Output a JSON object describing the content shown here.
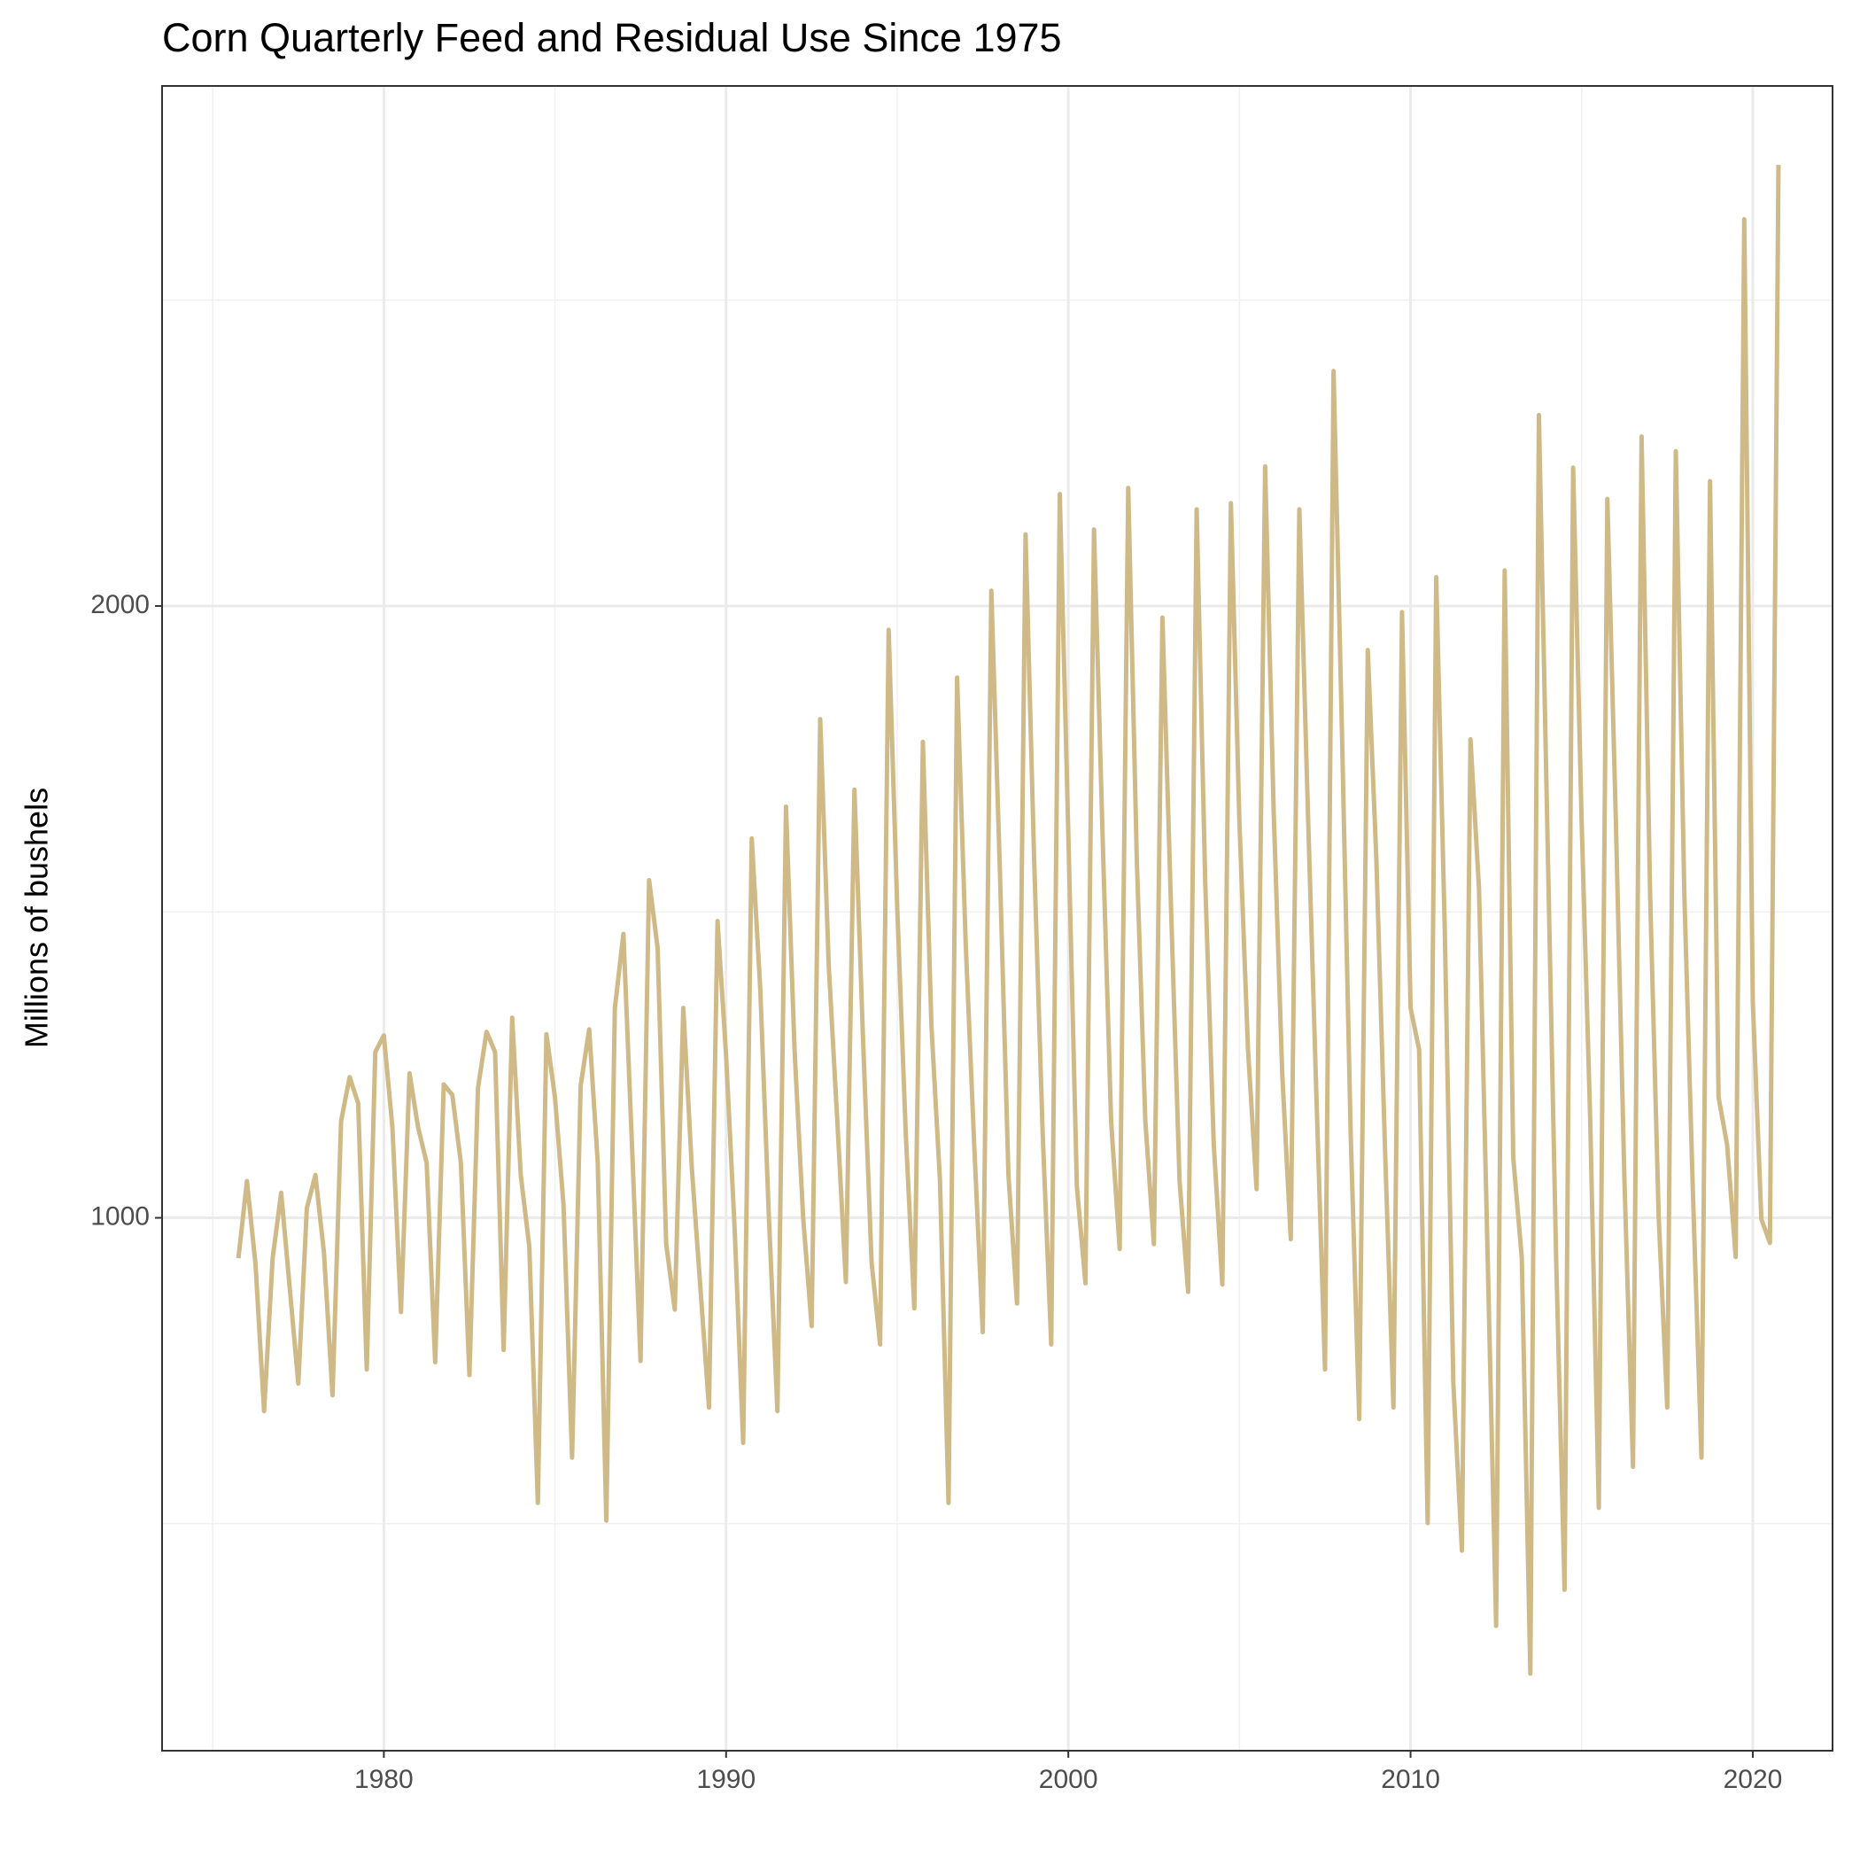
{
  "chart_data": {
    "type": "line",
    "title": "Corn Quarterly Feed and Residual Use Since 1975",
    "y_label": "Millions of bushels",
    "color": "#cfb987",
    "grid": true,
    "xlim": [
      1973.52,
      2022.33
    ],
    "ylim": [
      129,
      2850
    ],
    "xticks": [
      1980,
      1990,
      2000,
      2010,
      2020
    ],
    "yticks": [
      1000,
      2000
    ],
    "x_minor_grid": [
      1975,
      1985,
      1995,
      2005,
      2015
    ],
    "y_minor_grid": [
      500,
      1500,
      2500
    ],
    "x": [
      1975.75,
      1976,
      1976.25,
      1976.5,
      1976.75,
      1977,
      1977.25,
      1977.5,
      1977.75,
      1978,
      1978.25,
      1978.5,
      1978.75,
      1979,
      1979.25,
      1979.5,
      1979.75,
      1980,
      1980.25,
      1980.5,
      1980.75,
      1981,
      1981.25,
      1981.5,
      1981.75,
      1982,
      1982.25,
      1982.5,
      1982.75,
      1983,
      1983.25,
      1983.5,
      1983.75,
      1984,
      1984.25,
      1984.5,
      1984.75,
      1985,
      1985.25,
      1985.5,
      1985.75,
      1986,
      1986.25,
      1986.5,
      1986.75,
      1987,
      1987.25,
      1987.5,
      1987.75,
      1988,
      1988.25,
      1988.5,
      1988.75,
      1989,
      1989.25,
      1989.5,
      1989.75,
      1990,
      1990.25,
      1990.5,
      1990.75,
      1991,
      1991.25,
      1991.5,
      1991.75,
      1992,
      1992.25,
      1992.5,
      1992.75,
      1993,
      1993.25,
      1993.5,
      1993.75,
      1994,
      1994.25,
      1994.5,
      1994.75,
      1995,
      1995.25,
      1995.5,
      1995.75,
      1996,
      1996.25,
      1996.5,
      1996.75,
      1997,
      1997.25,
      1997.5,
      1997.75,
      1998,
      1998.25,
      1998.5,
      1998.75,
      1999,
      1999.25,
      1999.5,
      1999.75,
      2000,
      2000.25,
      2000.5,
      2000.75,
      2001,
      2001.25,
      2001.5,
      2001.75,
      2002,
      2002.25,
      2002.5,
      2002.75,
      2003,
      2003.25,
      2003.5,
      2003.75,
      2004,
      2004.25,
      2004.5,
      2004.75,
      2005,
      2005.25,
      2005.5,
      2005.75,
      2006,
      2006.25,
      2006.5,
      2006.75,
      2007,
      2007.25,
      2007.5,
      2007.75,
      2008,
      2008.25,
      2008.5,
      2008.75,
      2009,
      2009.25,
      2009.5,
      2009.75,
      2010,
      2010.25,
      2010.5,
      2010.75,
      2011,
      2011.25,
      2011.5,
      2011.75,
      2012,
      2012.25,
      2012.5,
      2012.75,
      2013,
      2013.25,
      2013.5,
      2013.75,
      2014,
      2014.25,
      2014.5,
      2014.75,
      2015,
      2015.25,
      2015.5,
      2015.75,
      2016,
      2016.25,
      2016.5,
      2016.75,
      2017,
      2017.25,
      2017.5,
      2017.75,
      2018,
      2018.25,
      2018.5,
      2018.75,
      2019,
      2019.25,
      2019.5,
      2019.75,
      2020,
      2020.25,
      2020.5,
      2020.75
    ],
    "values": [
      934,
      1060,
      924,
      684,
      934,
      1041,
      885,
      729,
      1016,
      1070,
      943,
      710,
      1158,
      1230,
      1187,
      752,
      1271,
      1298,
      1148,
      846,
      1236,
      1148,
      1090,
      764,
      1218,
      1201,
      1090,
      743,
      1212,
      1304,
      1271,
      784,
      1327,
      1070,
      953,
      534,
      1300,
      1197,
      1021,
      608,
      1216,
      1308,
      1090,
      505,
      1343,
      1464,
      1119,
      766,
      1552,
      1441,
      957,
      850,
      1343,
      1080,
      885,
      690,
      1485,
      1265,
      982,
      632,
      1620,
      1372,
      1002,
      684,
      1672,
      1275,
      1002,
      823,
      1815,
      1411,
      1158,
      895,
      1700,
      1294,
      928,
      793,
      1961,
      1508,
      1138,
      852,
      1778,
      1314,
      1060,
      534,
      1883,
      1450,
      1119,
      813,
      2025,
      1567,
      1070,
      860,
      2117,
      1587,
      1138,
      793,
      2183,
      1626,
      1051,
      893,
      2125,
      1626,
      1158,
      949,
      2193,
      1587,
      1158,
      957,
      1981,
      1508,
      1060,
      879,
      2158,
      1548,
      1119,
      891,
      2168,
      1645,
      1275,
      1047,
      2228,
      1665,
      1236,
      965,
      2158,
      1665,
      1197,
      752,
      2384,
      1782,
      1138,
      671,
      1928,
      1587,
      1119,
      690,
      1990,
      1343,
      1275,
      501,
      2047,
      1470,
      729,
      456,
      1782,
      1538,
      943,
      333,
      2058,
      1099,
      934,
      255,
      2312,
      1626,
      943,
      392,
      2226,
      1645,
      1158,
      526,
      2175,
      1645,
      1060,
      593,
      2277,
      1528,
      1002,
      690,
      2253,
      1528,
      1041,
      608,
      2204,
      1197,
      1119,
      936,
      2632,
      1353,
      998,
      959,
      2721
    ]
  }
}
